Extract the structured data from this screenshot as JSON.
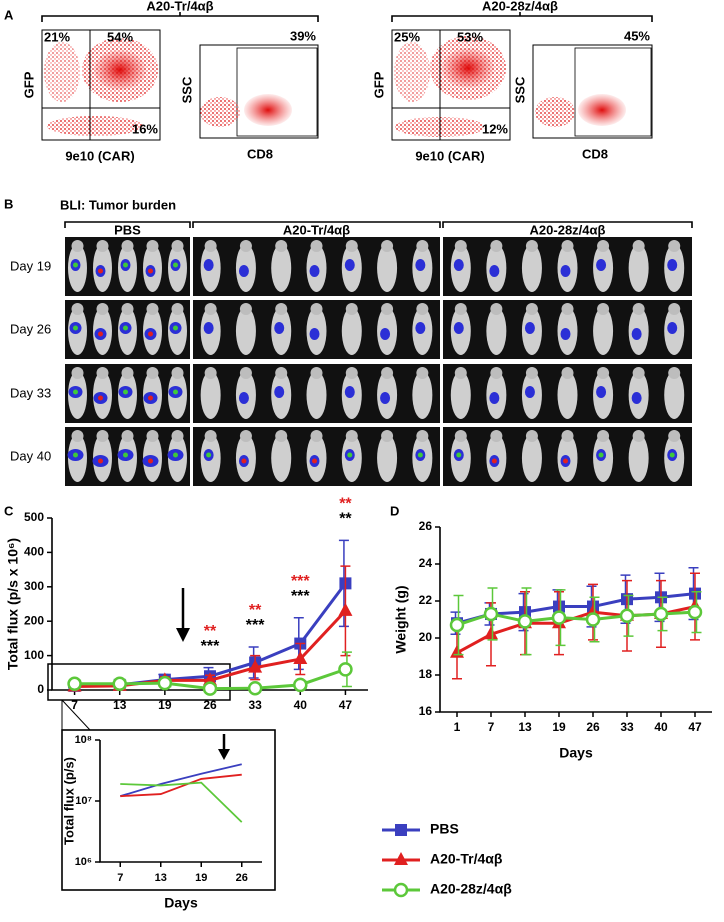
{
  "panels": {
    "a": "A",
    "b": "B",
    "c": "C",
    "d": "D"
  },
  "flow": [
    {
      "title": "A20-Tr/4αβ",
      "upper_left": "21%",
      "upper_right": "54%",
      "lower_right": "16%",
      "x_label": "9e10 (CAR)",
      "y_label": "GFP",
      "gate": "39%",
      "gate_x_label": "CD8",
      "gate_y_label": "SSC"
    },
    {
      "title": "A20-28z/4αβ",
      "upper_left": "25%",
      "upper_right": "53%",
      "lower_right": "12%",
      "x_label": "9e10 (CAR)",
      "y_label": "GFP",
      "gate": "45%",
      "gate_x_label": "CD8",
      "gate_y_label": "SSC"
    }
  ],
  "bli": {
    "title": "BLI: Tumor burden",
    "groups": [
      "PBS",
      "A20-Tr/4αβ",
      "A20-28z/4αβ"
    ],
    "days": [
      "Day 19",
      "Day 26",
      "Day 33",
      "Day 40"
    ]
  },
  "chart_data": [
    {
      "type": "line",
      "y_label": "Total flux (p/s x 10⁶)",
      "categories": [
        "7",
        "13",
        "19",
        "26",
        "33",
        "40",
        "47"
      ],
      "ylim": [
        0,
        500
      ],
      "yticks": [
        0,
        100,
        200,
        300,
        400,
        500
      ],
      "series": [
        {
          "name": "PBS",
          "color": "#3a3fbf",
          "marker": "square",
          "values": [
            12,
            15,
            30,
            40,
            80,
            135,
            310
          ],
          "errors": [
            5,
            5,
            15,
            25,
            45,
            75,
            125
          ]
        },
        {
          "name": "A20-Tr/4αβ",
          "color": "#e02020",
          "marker": "triangle",
          "values": [
            10,
            12,
            28,
            28,
            65,
            90,
            230
          ],
          "errors": [
            5,
            5,
            10,
            15,
            35,
            45,
            130
          ]
        },
        {
          "name": "A20-28z/4αβ",
          "color": "#5cc83a",
          "marker": "circle",
          "values": [
            18,
            18,
            20,
            4,
            5,
            15,
            60
          ],
          "errors": [
            10,
            10,
            10,
            5,
            5,
            10,
            50
          ]
        }
      ],
      "significance_red": [
        null,
        null,
        null,
        "**",
        "**",
        "***",
        "**"
      ],
      "significance_black": [
        null,
        null,
        null,
        "***",
        "***",
        "***",
        "**"
      ],
      "significance_colors": [
        "#e02020",
        "#000000"
      ]
    },
    {
      "type": "line",
      "x_label": "Days",
      "y_label": "Weight (g)",
      "categories": [
        "1",
        "7",
        "13",
        "19",
        "26",
        "33",
        "40",
        "47"
      ],
      "ylim": [
        16,
        26
      ],
      "yticks": [
        16,
        18,
        20,
        22,
        24,
        26
      ],
      "series": [
        {
          "color": "#3a3fbf",
          "marker": "square",
          "values": [
            20.8,
            21.3,
            21.4,
            21.7,
            21.7,
            22.1,
            22.2,
            22.4
          ],
          "errors": [
            0.6,
            0.6,
            1.0,
            0.9,
            1.1,
            1.3,
            1.3,
            1.4
          ]
        },
        {
          "color": "#e02020",
          "marker": "triangle",
          "values": [
            19.2,
            20.2,
            20.8,
            20.8,
            21.4,
            21.2,
            21.3,
            21.7
          ],
          "errors": [
            1.4,
            1.7,
            1.7,
            1.7,
            1.5,
            1.9,
            1.8,
            1.8
          ]
        },
        {
          "color": "#5cc83a",
          "marker": "circle",
          "values": [
            20.7,
            21.3,
            20.9,
            21.1,
            21.0,
            21.2,
            21.3,
            21.4
          ],
          "errors": [
            1.6,
            1.4,
            1.8,
            1.5,
            1.2,
            1.1,
            0.9,
            1.1
          ]
        }
      ]
    },
    {
      "type": "line",
      "x_label": "Days",
      "y_label": "Total flux (p/s)",
      "log_scale": true,
      "categories": [
        "7",
        "13",
        "19",
        "26"
      ],
      "ylim": [
        1000000,
        100000000
      ],
      "yticks": [
        {
          "value": 1000000,
          "label": "10⁶"
        },
        {
          "value": 10000000,
          "label": "10⁷"
        },
        {
          "value": 100000000,
          "label": "10⁸"
        }
      ],
      "series": [
        {
          "color": "#3a3fbf",
          "values": [
            12000000,
            19000000,
            28000000,
            40000000
          ]
        },
        {
          "color": "#e02020",
          "values": [
            12000000,
            13000000,
            23000000,
            27000000
          ]
        },
        {
          "color": "#5cc83a",
          "values": [
            19000000,
            18000000,
            20000000,
            4500000
          ]
        }
      ]
    }
  ]
}
